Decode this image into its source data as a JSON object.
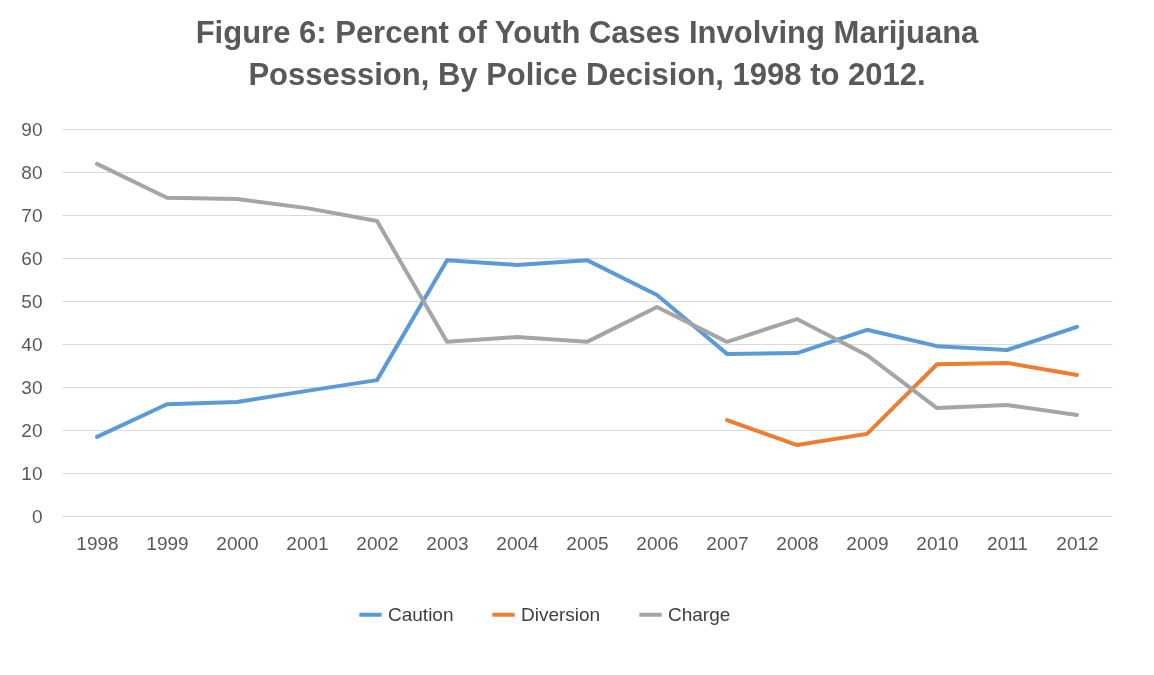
{
  "chart_data": {
    "type": "line",
    "title": "Figure 6: Percent of Youth Cases Involving Marijuana Possession, By Police Decision, 1998 to 2012.",
    "categories": [
      "1998",
      "1999",
      "2000",
      "2001",
      "2002",
      "2003",
      "2004",
      "2005",
      "2006",
      "2007",
      "2008",
      "2009",
      "2010",
      "2011",
      "2012"
    ],
    "series": [
      {
        "name": "Caution",
        "color": "#5b9bd5",
        "values": [
          18.4,
          26.0,
          26.5,
          29.1,
          31.6,
          59.5,
          58.4,
          59.5,
          51.4,
          37.7,
          37.9,
          43.3,
          39.5,
          38.6,
          44.0
        ]
      },
      {
        "name": "Diversion",
        "color": "#ed7d31",
        "values": [
          null,
          null,
          null,
          null,
          null,
          null,
          null,
          null,
          null,
          22.3,
          16.5,
          19.1,
          35.3,
          35.6,
          32.8
        ]
      },
      {
        "name": "Charge",
        "color": "#a5a5a5",
        "values": [
          81.9,
          74.0,
          73.7,
          71.6,
          68.6,
          40.5,
          41.6,
          40.5,
          48.6,
          40.5,
          45.8,
          37.4,
          25.1,
          25.8,
          23.5
        ]
      }
    ],
    "ylim": [
      0,
      90
    ],
    "yticks": [
      0,
      10,
      20,
      30,
      40,
      50,
      60,
      70,
      80,
      90
    ],
    "grid": "y",
    "legend": "bottom",
    "marker": "none",
    "line_style": "solid"
  }
}
